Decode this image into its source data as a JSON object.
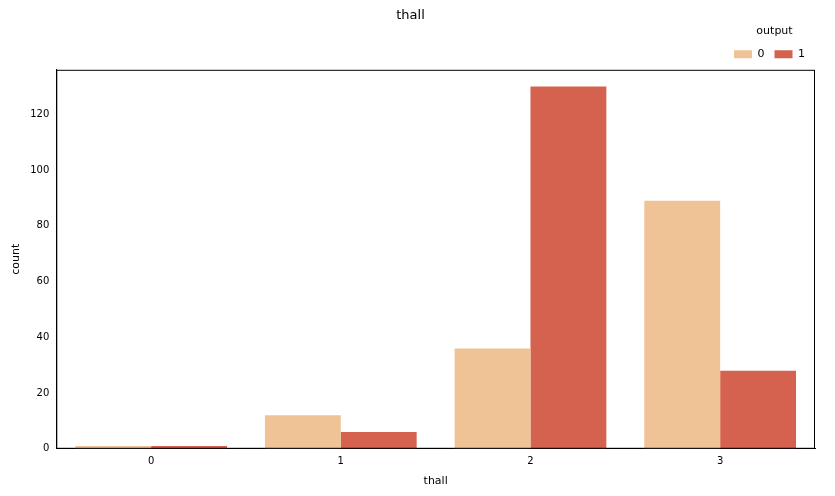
{
  "chart_data": {
    "type": "bar",
    "title": "thall",
    "x_label": "thall",
    "y_label": "count",
    "categories": [
      "0",
      "1",
      "2",
      "3"
    ],
    "series": [
      {
        "name": "0",
        "color": "#f0c396",
        "values": [
          1,
          12,
          36,
          89
        ]
      },
      {
        "name": "1",
        "color": "#d4624e",
        "values": [
          1,
          6,
          130,
          28
        ]
      }
    ],
    "legend_title": "output",
    "legend": "upper right",
    "ylim": [
      0,
      136
    ],
    "yticks": [
      0,
      20,
      40,
      60,
      80,
      100,
      120
    ],
    "grid": false
  }
}
